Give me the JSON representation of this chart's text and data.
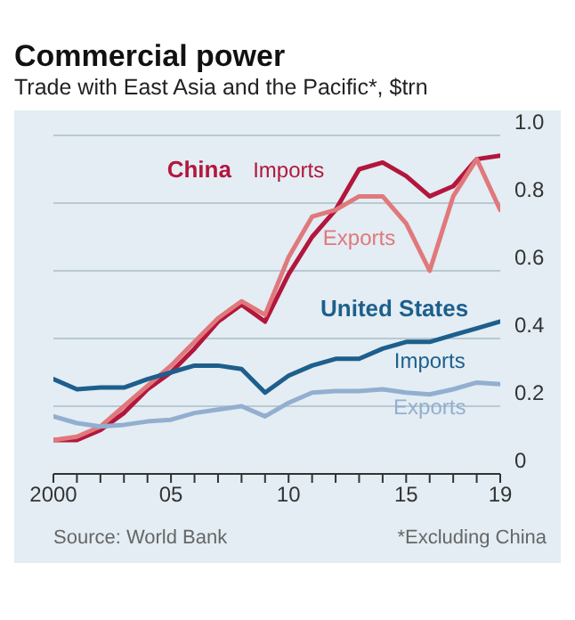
{
  "chart_data": {
    "type": "line",
    "title": "Commercial power",
    "subtitle": "Trade with East Asia and the Pacific*, $trn",
    "x": [
      2000,
      2001,
      2002,
      2003,
      2004,
      2005,
      2006,
      2007,
      2008,
      2009,
      2010,
      2011,
      2012,
      2013,
      2014,
      2015,
      2016,
      2017,
      2018,
      2019
    ],
    "series": [
      {
        "name": "Imports",
        "color": "#b3163c",
        "values": [
          0.1,
          0.1,
          0.13,
          0.18,
          0.25,
          0.3,
          0.37,
          0.45,
          0.5,
          0.45,
          0.59,
          0.7,
          0.78,
          0.9,
          0.92,
          0.88,
          0.82,
          0.85,
          0.93,
          0.94
        ]
      },
      {
        "name": "Exports",
        "color": "#e0787c",
        "values": [
          0.1,
          0.11,
          0.14,
          0.2,
          0.26,
          0.32,
          0.39,
          0.46,
          0.51,
          0.47,
          0.64,
          0.76,
          0.78,
          0.82,
          0.82,
          0.74,
          0.6,
          0.82,
          0.93,
          0.78
        ]
      },
      {
        "name": "Imports",
        "color": "#1d5f8c",
        "values": [
          0.28,
          0.25,
          0.255,
          0.255,
          0.28,
          0.3,
          0.32,
          0.32,
          0.31,
          0.24,
          0.29,
          0.32,
          0.34,
          0.34,
          0.37,
          0.39,
          0.39,
          0.41,
          0.43,
          0.45
        ]
      },
      {
        "name": "Exports",
        "color": "#93afcf",
        "values": [
          0.17,
          0.15,
          0.14,
          0.145,
          0.155,
          0.16,
          0.18,
          0.19,
          0.2,
          0.17,
          0.21,
          0.24,
          0.245,
          0.245,
          0.25,
          0.24,
          0.235,
          0.25,
          0.27,
          0.265
        ]
      }
    ],
    "annotations": [
      "China",
      "United States",
      "Source: World Bank",
      "*Excluding China"
    ],
    "xlim": [
      2000,
      2019
    ],
    "xticks": [
      {
        "value": 2000,
        "label": "2000"
      },
      {
        "value": 2001,
        "label": null
      },
      {
        "value": 2002,
        "label": null
      },
      {
        "value": 2003,
        "label": null
      },
      {
        "value": 2004,
        "label": null
      },
      {
        "value": 2005,
        "label": "05"
      },
      {
        "value": 2006,
        "label": null
      },
      {
        "value": 2007,
        "label": null
      },
      {
        "value": 2008,
        "label": null
      },
      {
        "value": 2009,
        "label": null
      },
      {
        "value": 2010,
        "label": "10"
      },
      {
        "value": 2011,
        "label": null
      },
      {
        "value": 2012,
        "label": null
      },
      {
        "value": 2013,
        "label": null
      },
      {
        "value": 2014,
        "label": null
      },
      {
        "value": 2015,
        "label": "15"
      },
      {
        "value": 2016,
        "label": null
      },
      {
        "value": 2017,
        "label": null
      },
      {
        "value": 2018,
        "label": null
      },
      {
        "value": 2019,
        "label": "19"
      }
    ],
    "ylim": [
      0,
      1
    ],
    "yticks": [
      0,
      0.2,
      0.4,
      0.6,
      0.8,
      {
        "value": 1,
        "label": "1.0"
      }
    ],
    "grid": "y",
    "marker": "none",
    "line_style": "solid"
  }
}
